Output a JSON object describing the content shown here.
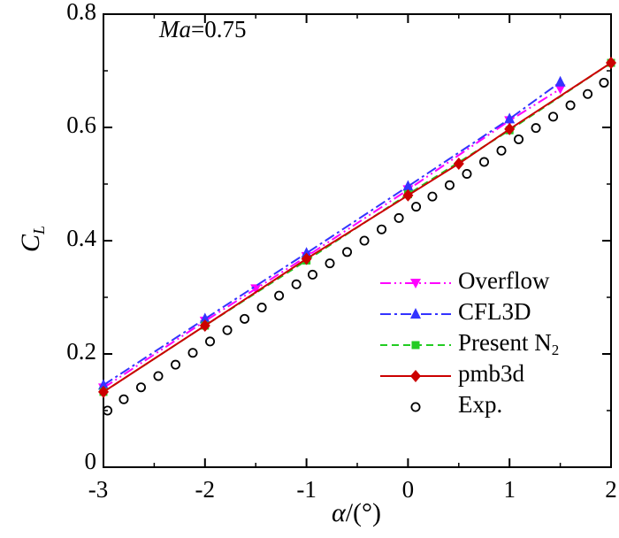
{
  "chart_data": {
    "type": "line",
    "annotation": {
      "name": "Ma",
      "value": "=0.75"
    },
    "xlabel": {
      "symbol": "α",
      "unit": "/(°)"
    },
    "ylabel": {
      "base": "C",
      "subscript": "L"
    },
    "xlim": [
      -3,
      2
    ],
    "ylim": [
      0,
      0.8
    ],
    "xticks": [
      -3,
      -2,
      -1,
      0,
      1,
      2
    ],
    "yticks": [
      0,
      0.2,
      0.4,
      0.6,
      0.8
    ],
    "xtick_labels": [
      "-3",
      "-2",
      "-1",
      "0",
      "1",
      "2"
    ],
    "ytick_labels": [
      "0",
      "0.2",
      "0.4",
      "0.6",
      "0.8"
    ],
    "grid": false,
    "legend_position": "bottom-right",
    "series": [
      {
        "name": "Overflow",
        "color": "#ff00ff",
        "dash": "dash-dot-dot",
        "marker": "triangle-down",
        "x": [
          -3,
          -2,
          -1.5,
          -1,
          0,
          1,
          1.5
        ],
        "y": [
          0.14,
          0.258,
          0.315,
          0.372,
          0.49,
          0.612,
          0.668
        ]
      },
      {
        "name": "CFL3D",
        "color": "#3333ff",
        "dash": "dash-dot",
        "marker": "triangle-up",
        "x": [
          -3,
          -2,
          -1,
          0,
          1,
          1.5
        ],
        "y": [
          0.145,
          0.262,
          0.378,
          0.496,
          0.615,
          0.68
        ]
      },
      {
        "name": "Present N",
        "subscript": "2",
        "color": "#22cc22",
        "dash": "dash",
        "marker": "square",
        "x": [
          -3,
          -2,
          -1,
          0,
          1,
          2
        ],
        "y": [
          0.133,
          0.25,
          0.365,
          0.482,
          0.595,
          0.714
        ]
      },
      {
        "name": "pmb3d",
        "color": "#cc0000",
        "dash": "solid",
        "marker": "diamond",
        "x": [
          -3,
          -2,
          -1,
          0,
          0.5,
          1,
          2
        ],
        "y": [
          0.133,
          0.25,
          0.368,
          0.48,
          0.536,
          0.597,
          0.714
        ]
      },
      {
        "name": "Exp.",
        "color": "#000000",
        "dash": "none",
        "marker": "circle-open",
        "x": [
          -2.96,
          -2.8,
          -2.63,
          -2.46,
          -2.29,
          -2.12,
          -1.95,
          -1.78,
          -1.61,
          -1.44,
          -1.27,
          -1.1,
          -0.94,
          -0.77,
          -0.6,
          -0.43,
          -0.26,
          -0.09,
          0.08,
          0.24,
          0.41,
          0.58,
          0.75,
          0.92,
          1.09,
          1.26,
          1.43,
          1.6,
          1.77,
          1.93
        ],
        "y": [
          0.1,
          0.12,
          0.141,
          0.161,
          0.181,
          0.202,
          0.222,
          0.242,
          0.262,
          0.282,
          0.303,
          0.323,
          0.34,
          0.36,
          0.38,
          0.4,
          0.42,
          0.44,
          0.46,
          0.478,
          0.498,
          0.518,
          0.539,
          0.559,
          0.579,
          0.599,
          0.619,
          0.639,
          0.659,
          0.679
        ]
      }
    ]
  }
}
